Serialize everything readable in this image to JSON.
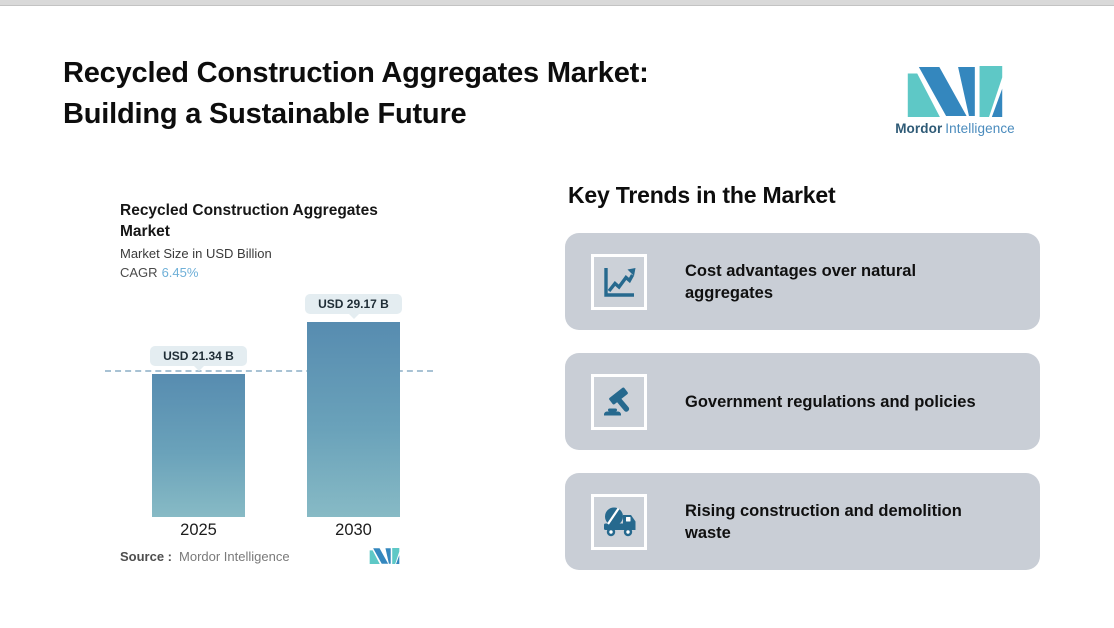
{
  "page": {
    "title_line1": "Recycled Construction Aggregates Market:",
    "title_line2": "Building a Sustainable Future"
  },
  "brand": {
    "name_bold": "Mordor",
    "name_light": "Intelligence",
    "teal": "#5ec8c6",
    "blue": "#3487be"
  },
  "chart": {
    "title_line1": "Recycled Construction Aggregates",
    "title_line2": "Market",
    "subtitle": "Market Size in USD Billion",
    "cagr_label": "CAGR",
    "cagr_value": "6.45%",
    "source_label": "Source :",
    "source_value": "Mordor Intelligence"
  },
  "chart_data": {
    "type": "bar",
    "title": "Recycled Construction Aggregates Market",
    "subtitle": "Market Size in USD Billion",
    "cagr": "6.45%",
    "categories": [
      "2025",
      "2030"
    ],
    "values": [
      21.34,
      29.17
    ],
    "data_labels": [
      "USD 21.34 B",
      "USD 29.17 B"
    ],
    "unit": "USD Billion",
    "reference_line_at": 21.34,
    "reference_line_style": "dashed",
    "bar_gradient": [
      "#578cb0",
      "#87bac5"
    ],
    "grid": "off",
    "legend": "none"
  },
  "trends": {
    "heading": "Key Trends in the Market",
    "cards": [
      {
        "icon": "line-chart-icon",
        "text": "Cost advantages over natural aggregates"
      },
      {
        "icon": "gavel-icon",
        "text": "Government regulations and policies"
      },
      {
        "icon": "mixer-truck-icon",
        "text": "Rising construction and demolition waste"
      }
    ]
  },
  "colors": {
    "card_background": "#c9ced6",
    "icon_color": "#26698e",
    "badge_background": "#e4edf1",
    "dashed_line": "#a8c2d4",
    "cagr_value_color": "#6fb0d8",
    "top_strip": "#d9d9d9"
  }
}
